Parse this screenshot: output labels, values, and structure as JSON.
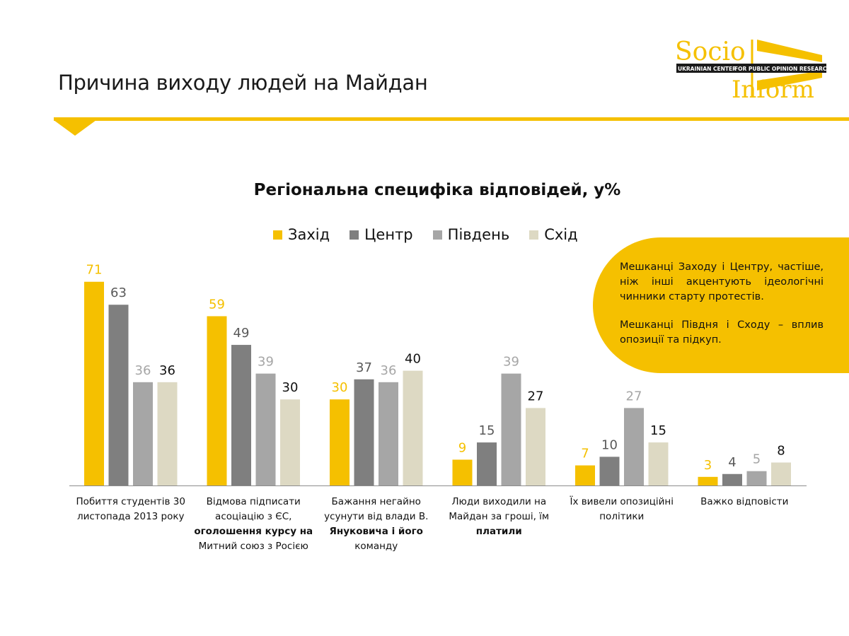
{
  "slide": {
    "title": "Причина виходу людей на Майдан"
  },
  "logo": {
    "text_top": "Socio",
    "text_bottom": "Inform",
    "band_left": "UKRAINIAN CENTER",
    "band_right": "FOR PUBLIC OPINION RESEARCH"
  },
  "callout": {
    "p1": "Мешканці Заходу і Центру, частіше, ніж інші акцентують ідеологічні чинники старту протестів.",
    "p2": "Мешканці Півдня і Сходу – вплив опозиції та підкуп."
  },
  "colors": {
    "accent": "#f5c000",
    "text": "#1a1a1a"
  },
  "chart_data": {
    "type": "bar",
    "title": "Регіональна специфіка відповідей, у%",
    "ylim": [
      0,
      80
    ],
    "legend_position": "top",
    "categories": [
      {
        "lines": [
          {
            "text": "Побиття студентів 30 листопада 2013 року",
            "bold": false
          }
        ]
      },
      {
        "lines": [
          {
            "text": "Відмова підписати асоціацію з ЄС,",
            "bold": false
          },
          {
            "text": "оголошення курсу на",
            "bold": true
          },
          {
            "text": "Митний союз з Росією",
            "bold": false
          }
        ]
      },
      {
        "lines": [
          {
            "text": "Бажання негайно усунути від влади В.",
            "bold": false
          },
          {
            "text": "Януковича і його",
            "bold": true
          },
          {
            "text": "команду",
            "bold": false
          }
        ]
      },
      {
        "lines": [
          {
            "text": "Люди виходили на Майдан за гроші, їм",
            "bold": false
          },
          {
            "text": "платили",
            "bold": true
          }
        ]
      },
      {
        "lines": [
          {
            "text": "Їх вивели опозиційні політики",
            "bold": false
          }
        ]
      },
      {
        "lines": [
          {
            "text": "Важко відповісти",
            "bold": false
          }
        ]
      }
    ],
    "series": [
      {
        "name": "Захід",
        "color": "#f5c000",
        "label_color": "#f5c000",
        "values": [
          71,
          59,
          30,
          9,
          7,
          3
        ]
      },
      {
        "name": "Центр",
        "color": "#7f7f7f",
        "label_color": "#595959",
        "values": [
          63,
          49,
          37,
          15,
          10,
          4
        ]
      },
      {
        "name": "Південь",
        "color": "#a6a6a6",
        "label_color": "#a6a6a6",
        "values": [
          36,
          39,
          36,
          39,
          27,
          5
        ]
      },
      {
        "name": "Схід",
        "color": "#ddd9c3",
        "label_color": "#111111",
        "values": [
          36,
          30,
          40,
          27,
          15,
          8
        ]
      }
    ]
  }
}
